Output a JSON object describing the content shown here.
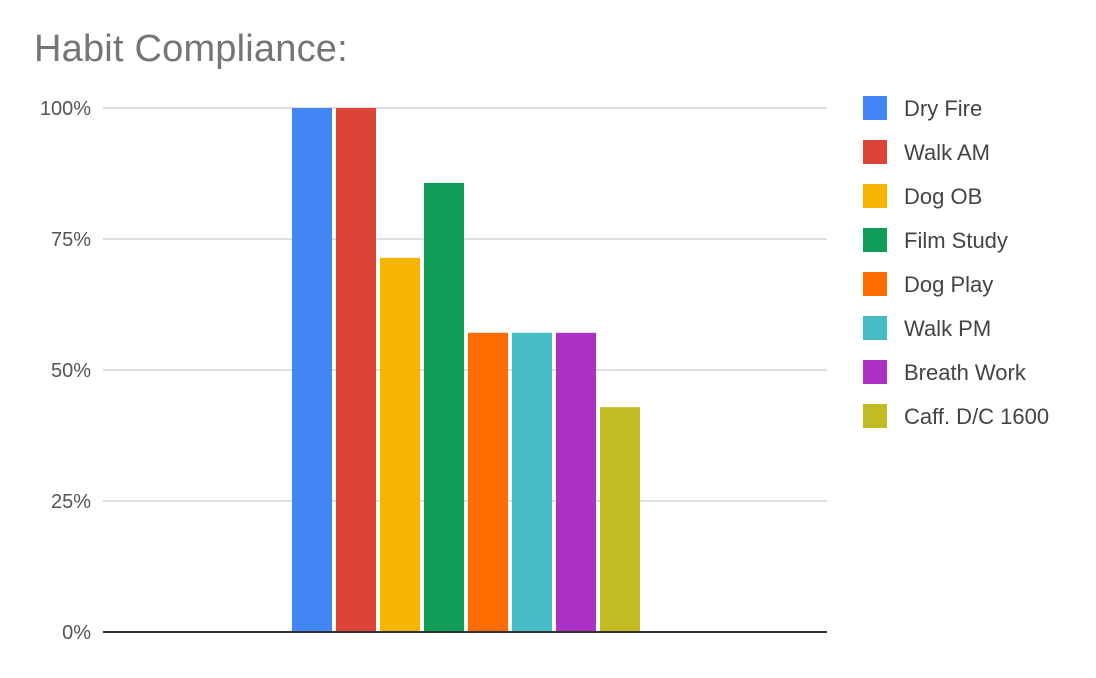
{
  "chart_data": {
    "type": "bar",
    "title": "Habit Compliance:",
    "xlabel": "",
    "ylabel": "",
    "ylim": [
      0,
      1
    ],
    "yticks": [
      {
        "value": 0,
        "label": "0%"
      },
      {
        "value": 0.25,
        "label": "25%"
      },
      {
        "value": 0.5,
        "label": "50%"
      },
      {
        "value": 0.75,
        "label": "75%"
      },
      {
        "value": 1,
        "label": "100%"
      }
    ],
    "grid": true,
    "legend_position": "right",
    "series": [
      {
        "name": "Dry Fire",
        "value": 1.0,
        "color": "#4285F4"
      },
      {
        "name": "Walk AM",
        "value": 1.0,
        "color": "#DB4437"
      },
      {
        "name": "Dog OB",
        "value": 0.714,
        "color": "#F4B400"
      },
      {
        "name": "Film Study",
        "value": 0.857,
        "color": "#0F9D58"
      },
      {
        "name": "Dog Play",
        "value": 0.571,
        "color": "#FF6D00"
      },
      {
        "name": "Walk PM",
        "value": 0.571,
        "color": "#46BDC6"
      },
      {
        "name": "Breath Work",
        "value": 0.571,
        "color": "#AB30C4"
      },
      {
        "name": "Caff. D/C 1600",
        "value": 0.429,
        "color": "#C2BB21"
      }
    ]
  }
}
